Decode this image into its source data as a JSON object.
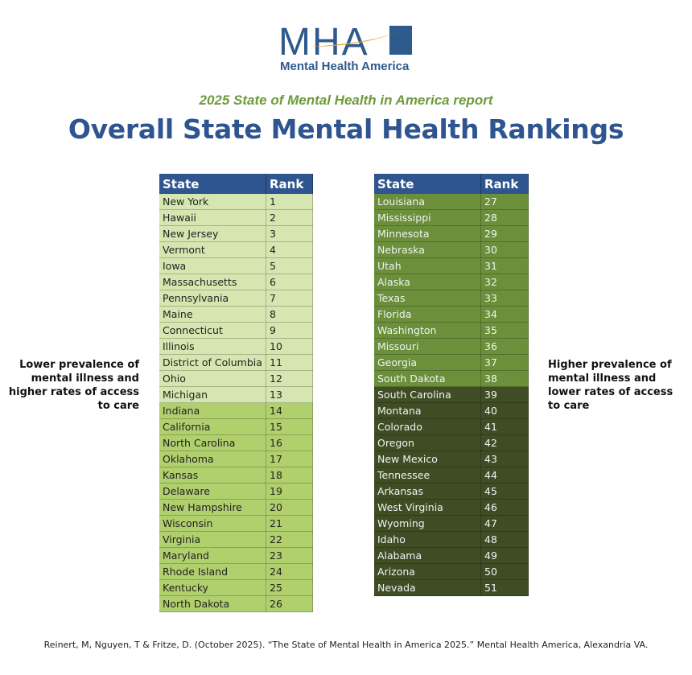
{
  "logo": {
    "letters": "MHA",
    "name": "Mental Health America",
    "colors": {
      "blue": "#2e5a8c",
      "orange": "#f0a030"
    }
  },
  "subtitle": "2025 State of Mental Health in America report",
  "title": "Overall State Mental Health Rankings",
  "table_headers": {
    "state": "State",
    "rank": "Rank"
  },
  "left_rows": [
    [
      "New York",
      "1"
    ],
    [
      "Hawaii",
      "2"
    ],
    [
      "New Jersey",
      "3"
    ],
    [
      "Vermont",
      "4"
    ],
    [
      "Iowa",
      "5"
    ],
    [
      "Massachusetts",
      "6"
    ],
    [
      "Pennsylvania",
      "7"
    ],
    [
      "Maine",
      "8"
    ],
    [
      "Connecticut",
      "9"
    ],
    [
      "Illinois",
      "10"
    ],
    [
      "District of Columbia",
      "11"
    ],
    [
      "Ohio",
      "12"
    ],
    [
      "Michigan",
      "13"
    ],
    [
      "Indiana",
      "14"
    ],
    [
      "California",
      "15"
    ],
    [
      "North Carolina",
      "16"
    ],
    [
      "Oklahoma",
      "17"
    ],
    [
      "Kansas",
      "18"
    ],
    [
      "Delaware",
      "19"
    ],
    [
      "New Hampshire",
      "20"
    ],
    [
      "Wisconsin",
      "21"
    ],
    [
      "Virginia",
      "22"
    ],
    [
      "Maryland",
      "23"
    ],
    [
      "Rhode Island",
      "24"
    ],
    [
      "Kentucky",
      "25"
    ],
    [
      "North Dakota",
      "26"
    ]
  ],
  "right_rows": [
    [
      "Louisiana",
      "27"
    ],
    [
      "Mississippi",
      "28"
    ],
    [
      "Minnesota",
      "29"
    ],
    [
      "Nebraska",
      "30"
    ],
    [
      "Utah",
      "31"
    ],
    [
      "Alaska",
      "32"
    ],
    [
      "Texas",
      "33"
    ],
    [
      "Florida",
      "34"
    ],
    [
      "Washington",
      "35"
    ],
    [
      "Missouri",
      "36"
    ],
    [
      "Georgia",
      "37"
    ],
    [
      "South Dakota",
      "38"
    ],
    [
      "South Carolina",
      "39"
    ],
    [
      "Montana",
      "40"
    ],
    [
      "Colorado",
      "41"
    ],
    [
      "Oregon",
      "42"
    ],
    [
      "New Mexico",
      "43"
    ],
    [
      "Tennessee",
      "44"
    ],
    [
      "Arkansas",
      "45"
    ],
    [
      "West Virginia",
      "46"
    ],
    [
      "Wyoming",
      "47"
    ],
    [
      "Idaho",
      "48"
    ],
    [
      "Alabama",
      "49"
    ],
    [
      "Arizona",
      "50"
    ],
    [
      "Nevada",
      "51"
    ]
  ],
  "tier_colors": {
    "ranks_1_13": "#d6e6b0",
    "ranks_14_26": "#b0d06e",
    "ranks_27_38": "#6b8f3a",
    "ranks_39_51": "#3e4d24",
    "header": "#2e5590"
  },
  "left_note": "Lower prevalence of mental illness and higher rates of access to care",
  "right_note": "Higher prevalence of mental illness and lower rates of access to care",
  "citation": "Reinert, M, Nguyen, T & Fritze, D. (October 2025). “The State of Mental Health in America 2025.” Mental Health America, Alexandria VA."
}
